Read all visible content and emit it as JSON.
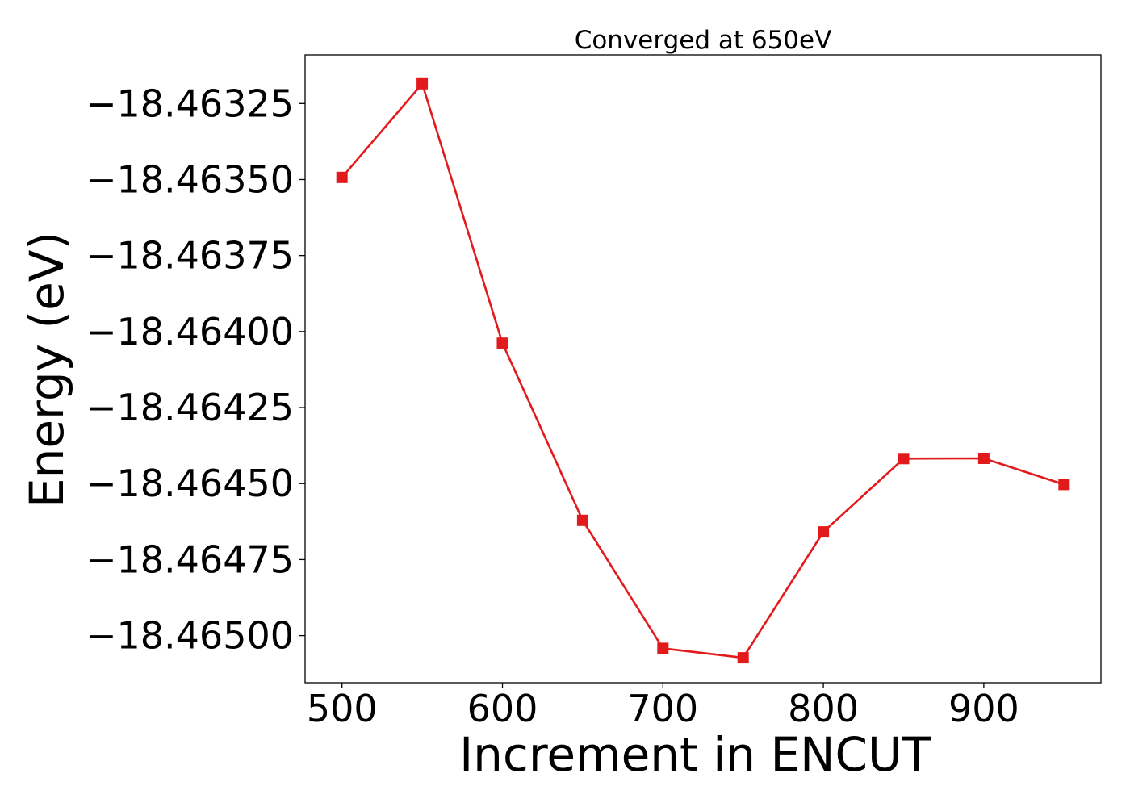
{
  "chart_data": {
    "type": "line",
    "title": "Converged at 650eV",
    "xlabel": "Increment in ENCUT",
    "ylabel": "Energy (eV)",
    "x": [
      500,
      550,
      600,
      650,
      700,
      750,
      800,
      850,
      900,
      950
    ],
    "series": [
      {
        "values": [
          -18.463493,
          -18.463185,
          -18.464038,
          -18.464621,
          -18.465042,
          -18.465073,
          -18.464659,
          -18.464418,
          -18.464417,
          -18.464503
        ],
        "color": "#e31a1c",
        "marker": "square"
      }
    ],
    "xlim": [
      477,
      973
    ],
    "ylim": [
      -18.465155,
      -18.46309
    ],
    "xticks": [
      500,
      600,
      700,
      800,
      900
    ],
    "xtick_labels": [
      "500",
      "600",
      "700",
      "800",
      "900"
    ],
    "yticks": [
      -18.46325,
      -18.4635,
      -18.46375,
      -18.464,
      -18.46425,
      -18.4645,
      -18.46475,
      -18.465
    ],
    "ytick_labels": [
      "−18.46325",
      "−18.46350",
      "−18.46375",
      "−18.46400",
      "−18.46425",
      "−18.46450",
      "−18.46475",
      "−18.46500"
    ],
    "grid": false,
    "legend": false
  }
}
